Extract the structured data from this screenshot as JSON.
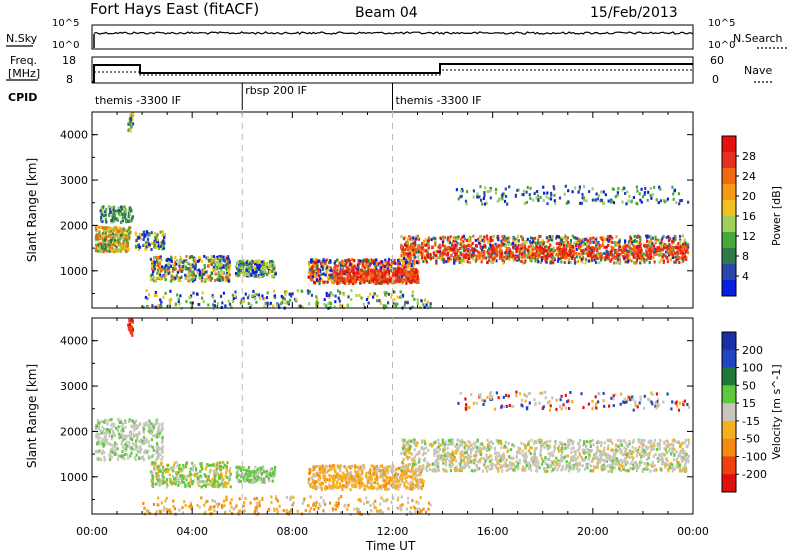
{
  "header": {
    "station": "Fort Hays East (fitACF)",
    "beam": "Beam 04",
    "date": "15/Feb/2013"
  },
  "top_panels": {
    "nsky_label": "N.Sky",
    "nsearch_label": "N.Search",
    "freq_label_line1": "Freq.",
    "freq_label_line2": "[MHz]",
    "nave_label": "Nave",
    "cpid_label": "CPID",
    "nsky_ticks": [
      "10^5",
      "10^0"
    ],
    "nsearch_ticks": [
      "10^5",
      "10^0"
    ],
    "freq_ticks": [
      "18",
      "8"
    ],
    "nave_ticks": [
      "60",
      "0"
    ]
  },
  "cpid_segments": [
    {
      "label": "themis -3300 IF",
      "start_h": 0,
      "end_h": 6
    },
    {
      "label": "rbsp 200 IF",
      "start_h": 6,
      "end_h": 12
    },
    {
      "label": "themis -3300 IF",
      "start_h": 12,
      "end_h": 24
    }
  ],
  "chart_data": [
    {
      "type": "heatmap",
      "panel": "power",
      "ylabel": "Slant Range [km]",
      "yticks": [
        "1000",
        "2000",
        "3000",
        "4000"
      ],
      "ylim": [
        180,
        4500
      ],
      "xlim": [
        0,
        24
      ],
      "colorbar": {
        "label": "Power [dB]",
        "ticks": [
          "4",
          "8",
          "12",
          "16",
          "20",
          "24",
          "28"
        ],
        "colors": [
          "#0a1ee0",
          "#2a46a8",
          "#2f7a4a",
          "#4aa83a",
          "#9fd05a",
          "#f2c020",
          "#f59a10",
          "#f06a10",
          "#e83020",
          "#e81010"
        ]
      }
    },
    {
      "type": "heatmap",
      "panel": "velocity",
      "ylabel": "Slant Range [km]",
      "yticks": [
        "1000",
        "2000",
        "3000",
        "4000"
      ],
      "ylim": [
        180,
        4500
      ],
      "xlim": [
        0,
        24
      ],
      "xlabel": "Time UT",
      "xticks": [
        "00:00",
        "04:00",
        "08:00",
        "12:00",
        "16:00",
        "20:00",
        "00:00"
      ],
      "colorbar": {
        "label": "Velocity [m s^-1]",
        "ticks": [
          "200",
          "100",
          "50",
          "15",
          "-15",
          "-50",
          "-100",
          "-200"
        ],
        "colors": [
          "#1a2ea8",
          "#2244c0",
          "#1f7a3a",
          "#5fc840",
          "#c6c6bc",
          "#f5b020",
          "#f58a10",
          "#f04010",
          "#e01010"
        ]
      }
    }
  ]
}
